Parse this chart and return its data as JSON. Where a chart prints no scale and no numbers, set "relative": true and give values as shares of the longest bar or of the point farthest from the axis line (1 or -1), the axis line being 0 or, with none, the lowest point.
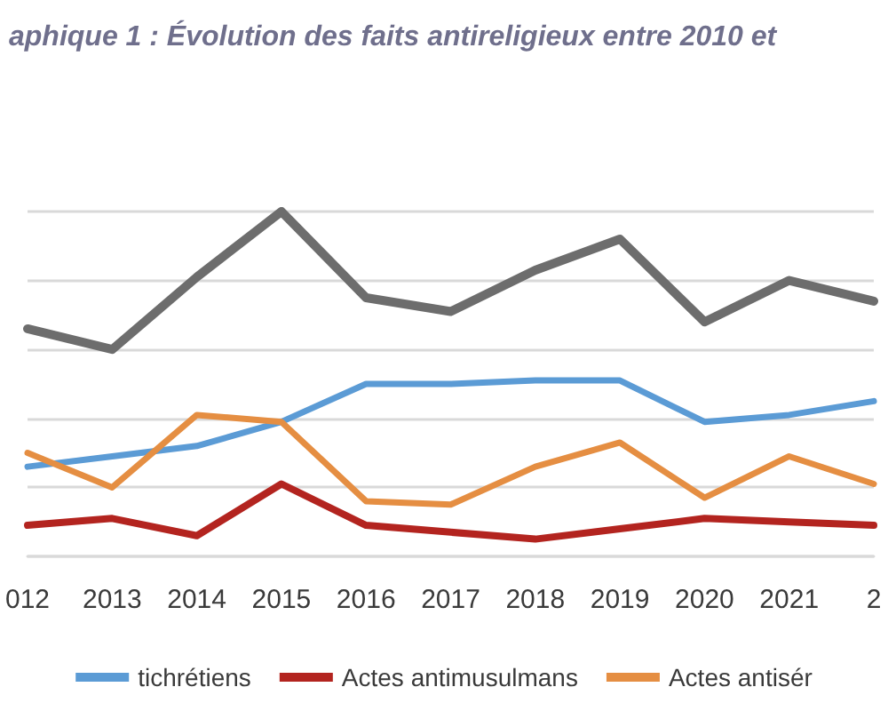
{
  "chart_data": {
    "type": "line",
    "title": "aphique 1 : Évolution des faits antireligieux entre 2010 et",
    "categories": [
      "012",
      "2013",
      "2014",
      "2015",
      "2016",
      "2017",
      "2018",
      "2019",
      "2020",
      "2021",
      "2"
    ],
    "relative": true,
    "series": [
      {
        "color": "#6d6d6d",
        "values": [
          0.66,
          0.6,
          0.81,
          1,
          0.75,
          0.71,
          0.83,
          0.92,
          0.68,
          0.8,
          0.74
        ]
      },
      {
        "name": "tichrétiens",
        "color": "#5b9bd5",
        "values": [
          0.26,
          0.29,
          0.32,
          0.39,
          0.5,
          0.5,
          0.51,
          0.51,
          0.39,
          0.41,
          0.45
        ]
      },
      {
        "name": "Actes antimusulmans",
        "color": "#b3241f",
        "values": [
          0.09,
          0.11,
          0.06,
          0.21,
          0.09,
          0.07,
          0.05,
          0.08,
          0.11,
          0.1,
          0.09
        ]
      },
      {
        "name": "Actes antisér",
        "color": "#e58e42",
        "values": [
          0.3,
          0.2,
          0.41,
          0.39,
          0.16,
          0.15,
          0.26,
          0.33,
          0.17,
          0.29,
          0.21
        ]
      }
    ],
    "grid": "y",
    "legend": "bottom",
    "marker": "none"
  }
}
